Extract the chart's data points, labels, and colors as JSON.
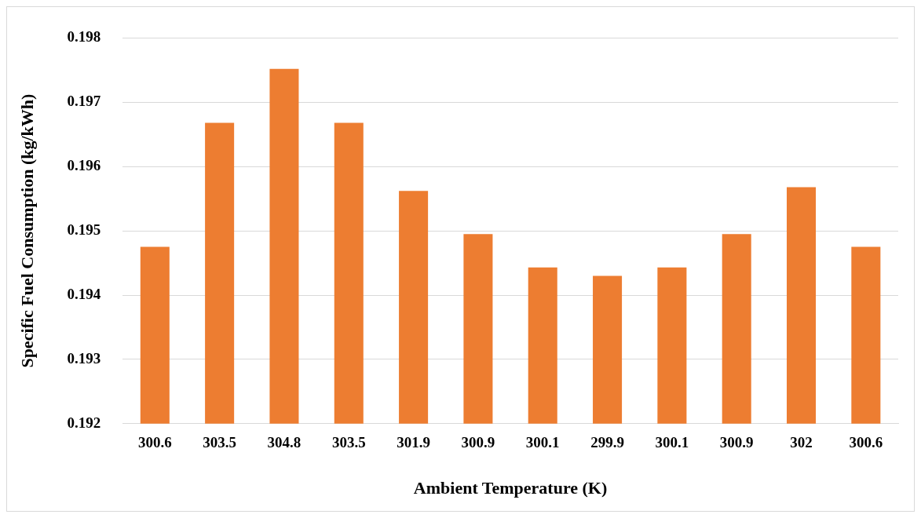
{
  "chart_data": {
    "type": "bar",
    "xlabel": "Ambient Temperature (K)",
    "ylabel": "Specific Fuel Consumption (kg/kWh)",
    "categories": [
      "300.6",
      "303.5",
      "304.8",
      "303.5",
      "301.9",
      "300.9",
      "300.1",
      "299.9",
      "300.1",
      "300.9",
      "302",
      "300.6"
    ],
    "values": [
      0.19475,
      0.19668,
      0.19752,
      0.19668,
      0.19562,
      0.19495,
      0.19443,
      0.1943,
      0.19443,
      0.19495,
      0.19568,
      0.19475
    ],
    "color": "#ed7d31",
    "ylim": [
      0.192,
      0.198
    ],
    "yticks": [
      0.192,
      0.193,
      0.194,
      0.195,
      0.196,
      0.197,
      0.198
    ],
    "grid": "y",
    "legend": false
  }
}
